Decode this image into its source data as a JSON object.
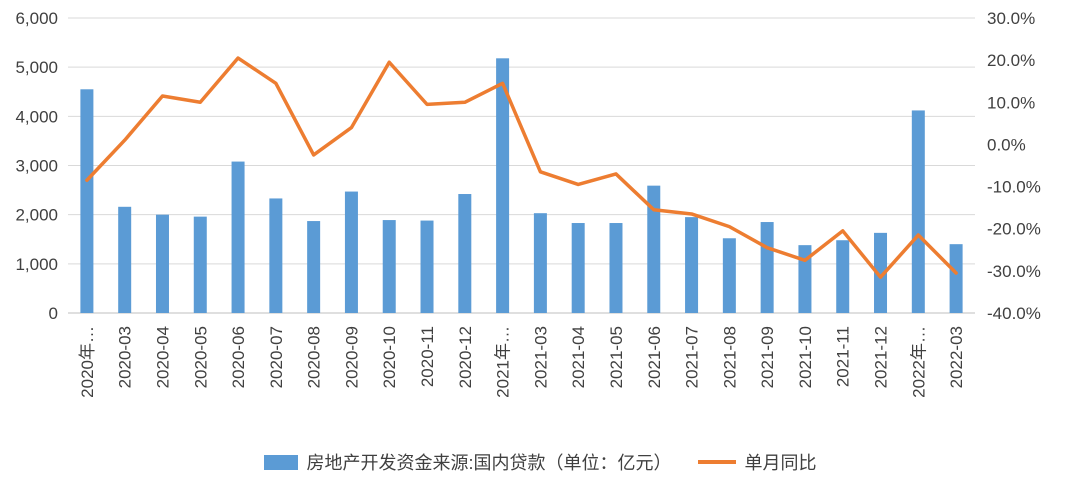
{
  "chart_data": {
    "type": "bar",
    "subtype": "combo-bar-line-dual-axis",
    "title": "",
    "grid": true,
    "legend_position": "bottom",
    "categories": [
      "2020年…",
      "2020-03",
      "2020-04",
      "2020-05",
      "2020-06",
      "2020-07",
      "2020-08",
      "2020-09",
      "2020-10",
      "2020-11",
      "2020-12",
      "2021年…",
      "2021-03",
      "2021-04",
      "2021-05",
      "2021-06",
      "2021-07",
      "2021-08",
      "2021-09",
      "2021-10",
      "2021-11",
      "2021-12",
      "2022年…",
      "2022-03"
    ],
    "series": [
      {
        "name": "房地产开发资金来源:国内贷款（单位：亿元）",
        "type": "bar",
        "axis": "left",
        "color": "#5B9BD5",
        "values": [
          4550,
          2160,
          2000,
          1960,
          3080,
          2330,
          1870,
          2470,
          1890,
          1880,
          2420,
          5180,
          2030,
          1830,
          1830,
          2590,
          1950,
          1520,
          1850,
          1380,
          1480,
          1630,
          4120,
          1400
        ]
      },
      {
        "name": "单月同比",
        "type": "line",
        "axis": "right",
        "color": "#ED7D31",
        "values": [
          -8.5,
          1.0,
          11.5,
          10.0,
          20.5,
          14.5,
          -2.5,
          4.0,
          19.5,
          9.5,
          10.0,
          14.5,
          -6.5,
          -9.5,
          -7.0,
          -15.5,
          -16.5,
          -19.5,
          -24.5,
          -27.5,
          -20.5,
          -31.5,
          -21.5,
          -30.5
        ]
      }
    ],
    "left_axis": {
      "min": 0,
      "max": 6000,
      "tick_labels": [
        "0",
        "1,000",
        "2,000",
        "3,000",
        "4,000",
        "5,000",
        "6,000"
      ]
    },
    "right_axis": {
      "min": -40,
      "max": 30,
      "tick_labels": [
        "-40.0%",
        "-30.0%",
        "-20.0%",
        "-10.0%",
        "0.0%",
        "10.0%",
        "20.0%",
        "30.0%"
      ]
    }
  },
  "legend": {
    "bar_label": "房地产开发资金来源:国内贷款（单位：亿元）",
    "line_label": "单月同比"
  },
  "colors": {
    "bar": "#5B9BD5",
    "line": "#ED7D31",
    "grid": "#D9D9D9",
    "axis_line": "#BFBFBF",
    "text": "#404040"
  }
}
